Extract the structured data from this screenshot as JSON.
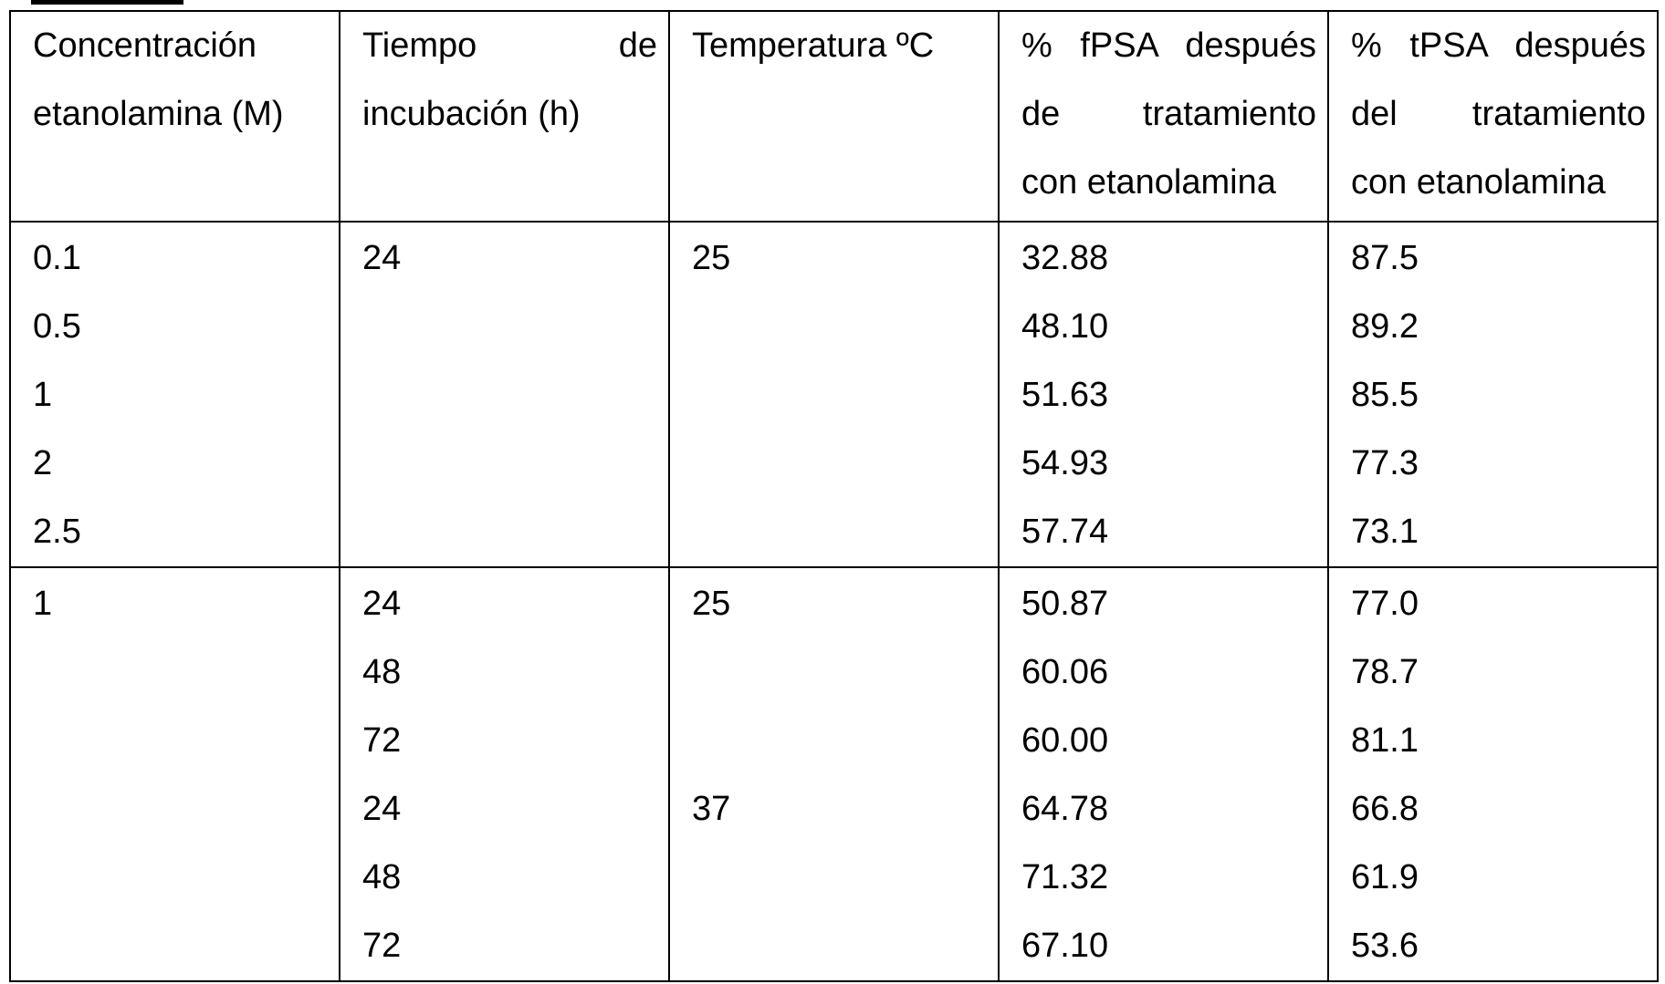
{
  "headers": {
    "col1": [
      "Concentración",
      "etanolamina (M)"
    ],
    "col2": [
      "Tiempo de",
      "incubación (h)"
    ],
    "col3": [
      "Temperatura ºC"
    ],
    "col4": [
      "% fPSA después",
      "de tratamiento",
      "con etanolamina"
    ],
    "col5": [
      "% tPSA después",
      "del tratamiento",
      "con etanolamina"
    ]
  },
  "groups": [
    {
      "concentration": [
        "0.1",
        "0.5",
        "1",
        "2",
        "2.5"
      ],
      "time": [
        "24"
      ],
      "temperature": [
        "25"
      ],
      "fpsa": [
        "32.88",
        "48.10",
        "51.63",
        "54.93",
        "57.74"
      ],
      "tpsa": [
        "87.5",
        "89.2",
        "85.5",
        "77.3",
        "73.1"
      ]
    },
    {
      "concentration": [
        "1"
      ],
      "time": [
        "24",
        "48",
        "72",
        "24",
        "48",
        "72"
      ],
      "temperature": [
        "25",
        "",
        "",
        "37"
      ],
      "fpsa": [
        "50.87",
        "60.06",
        "60.00",
        "64.78",
        "71.32",
        "67.10"
      ],
      "tpsa": [
        "77.0",
        "78.7",
        "81.1",
        "66.8",
        "61.9",
        "53.6"
      ]
    }
  ]
}
